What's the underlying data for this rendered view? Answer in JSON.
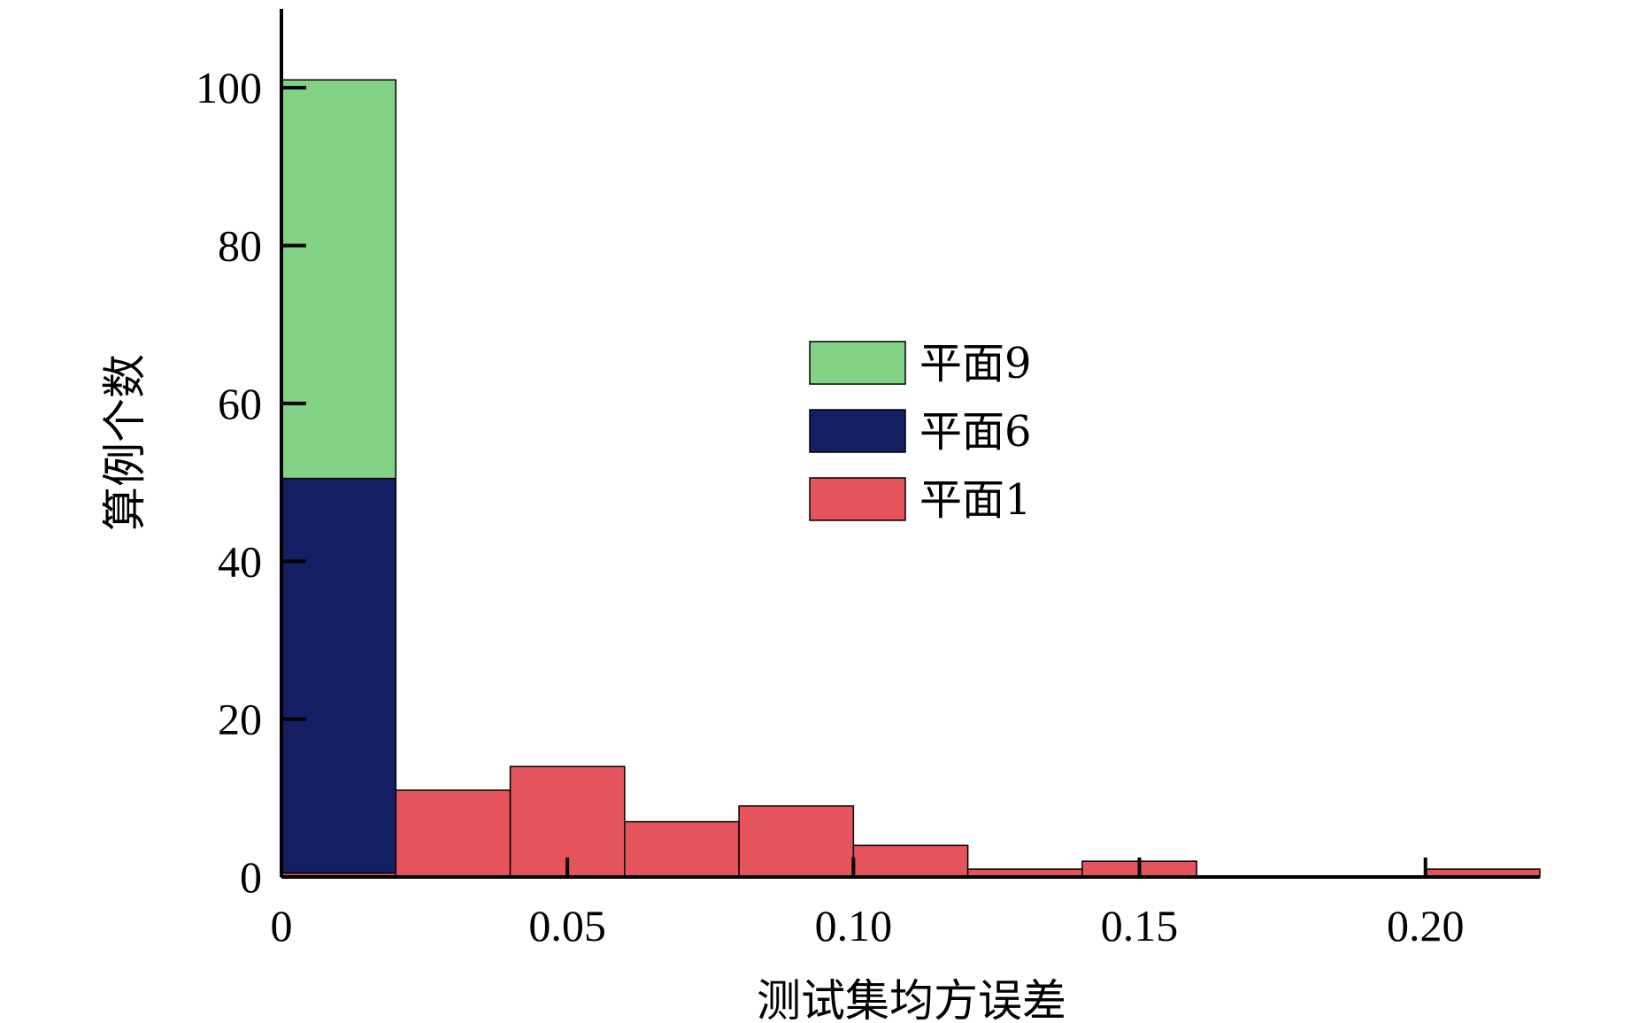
{
  "chart_data": {
    "type": "bar",
    "stacked": true,
    "bin_edges": [
      0,
      0.02,
      0.04,
      0.06,
      0.08,
      0.1,
      0.12,
      0.14,
      0.16,
      0.18,
      0.2,
      0.22
    ],
    "series": [
      {
        "name": "平面1",
        "color": "#e5535d",
        "values": [
          0.5,
          11,
          14,
          7,
          9,
          4,
          1,
          2,
          0,
          0,
          1
        ]
      },
      {
        "name": "平面6",
        "color": "#141f63",
        "values": [
          50,
          0,
          0,
          0,
          0,
          0,
          0,
          0,
          0,
          0,
          0
        ]
      },
      {
        "name": "平面9",
        "color": "#82d385",
        "values": [
          50.5,
          0,
          0,
          0,
          0,
          0,
          0,
          0,
          0,
          0,
          0
        ]
      }
    ],
    "legend_order": [
      2,
      1,
      0
    ],
    "xlabel": "测试集均方误差",
    "ylabel": "算例个数",
    "xlim": [
      0,
      0.22
    ],
    "ylim": [
      0,
      110
    ],
    "xticks": [
      0,
      0.05,
      0.1,
      0.15,
      0.2
    ],
    "xtick_labels": [
      "0",
      "0.05",
      "0.10",
      "0.15",
      "0.20"
    ],
    "yticks": [
      0,
      20,
      40,
      60,
      80,
      100
    ],
    "ytick_labels": [
      "0",
      "20",
      "40",
      "60",
      "80",
      "100"
    ],
    "grid": false,
    "legend_position": "center-right"
  }
}
